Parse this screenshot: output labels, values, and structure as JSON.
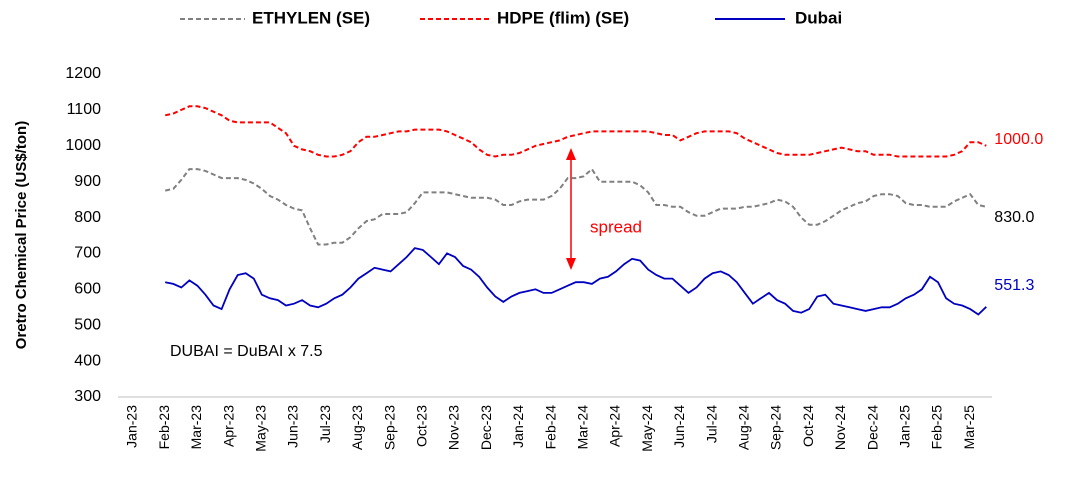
{
  "chart_data": {
    "type": "line",
    "ylabel": "Oretro Chemical Price (US$/ton)",
    "annotations": [
      "spread",
      "DUBAI = DuBAI x 7.5"
    ],
    "categories": [
      "Jan-23",
      null,
      null,
      null,
      "Feb-23",
      null,
      null,
      null,
      "Mar-23",
      null,
      null,
      null,
      "Apr-23",
      null,
      null,
      null,
      "May-23",
      null,
      null,
      null,
      "Jun-23",
      null,
      null,
      null,
      "Jul-23",
      null,
      null,
      null,
      "Aug-23",
      null,
      null,
      null,
      "Sep-23",
      null,
      null,
      null,
      "Oct-23",
      null,
      null,
      null,
      "Nov-23",
      null,
      null,
      null,
      "Dec-23",
      null,
      null,
      null,
      "Jan-24",
      null,
      null,
      null,
      "Feb-24",
      null,
      null,
      null,
      "Mar-24",
      null,
      null,
      null,
      "Apr-24",
      null,
      null,
      null,
      "May-24",
      null,
      null,
      null,
      "Jun-24",
      null,
      null,
      null,
      "Jul-24",
      null,
      null,
      null,
      "Aug-24",
      null,
      null,
      null,
      "Sep-24",
      null,
      null,
      null,
      "Oct-24",
      null,
      null,
      null,
      "Nov-24",
      null,
      null,
      null,
      "Dec-24",
      null,
      null,
      null,
      "Jan-25",
      null,
      null,
      null,
      "Feb-25",
      null,
      null,
      null,
      "Mar-25",
      null,
      null,
      null
    ],
    "ylim": [
      300,
      1200
    ],
    "yticks": [
      300,
      400,
      500,
      600,
      700,
      800,
      900,
      1000,
      1100,
      1200
    ],
    "grid": false,
    "series": [
      {
        "name": "ETHYLEN (SE)",
        "color": "#808080",
        "dash": true,
        "values": [
          null,
          null,
          null,
          null,
          875,
          880,
          905,
          935,
          935,
          930,
          920,
          910,
          910,
          910,
          905,
          895,
          880,
          860,
          850,
          835,
          825,
          820,
          770,
          725,
          725,
          730,
          730,
          745,
          770,
          790,
          795,
          810,
          810,
          810,
          815,
          840,
          870,
          870,
          870,
          870,
          865,
          860,
          855,
          855,
          855,
          850,
          835,
          835,
          845,
          850,
          850,
          850,
          860,
          880,
          910,
          910,
          915,
          935,
          900,
          900,
          900,
          900,
          900,
          890,
          870,
          835,
          835,
          830,
          830,
          815,
          805,
          805,
          815,
          825,
          825,
          825,
          830,
          830,
          835,
          840,
          850,
          845,
          830,
          800,
          780,
          780,
          790,
          805,
          820,
          830,
          840,
          845,
          860,
          865,
          865,
          860,
          840,
          835,
          835,
          830,
          830,
          830,
          845,
          855,
          865,
          835,
          830,
          null
        ],
        "value_labels": [
          null,
          null,
          null,
          null,
          null,
          null,
          null,
          null,
          null,
          null,
          null,
          null,
          null,
          null,
          null,
          null,
          null,
          null,
          null,
          null,
          null,
          null,
          null,
          null,
          null,
          null,
          null,
          null,
          null,
          null,
          null,
          null,
          null,
          null,
          null,
          null,
          null,
          null,
          null,
          null,
          null,
          null,
          null,
          null,
          null,
          null,
          null,
          null,
          null,
          null,
          null,
          null,
          null,
          null,
          null,
          null,
          null,
          null,
          null,
          null,
          null,
          null,
          null,
          null,
          null,
          null,
          null,
          null,
          null,
          null,
          null,
          null,
          null,
          null,
          null,
          null,
          null,
          null,
          null,
          null,
          null,
          null,
          null,
          null,
          null,
          null,
          null,
          null,
          null,
          null,
          null,
          null,
          null,
          null,
          null,
          null,
          null,
          null,
          null,
          null,
          null,
          null,
          null,
          null,
          null,
          null,
          "830.0",
          null
        ]
      },
      {
        "name": "HDPE (flim) (SE)",
        "color": "#ff0000",
        "dash": true,
        "values": [
          null,
          null,
          null,
          null,
          1085,
          1090,
          1100,
          1110,
          1110,
          1105,
          1095,
          1085,
          1070,
          1065,
          1065,
          1065,
          1065,
          1065,
          1050,
          1035,
          1000,
          990,
          985,
          975,
          970,
          970,
          975,
          985,
          1010,
          1025,
          1025,
          1030,
          1035,
          1040,
          1040,
          1045,
          1045,
          1045,
          1045,
          1040,
          1030,
          1020,
          1010,
          990,
          975,
          970,
          975,
          975,
          980,
          990,
          1000,
          1005,
          1010,
          1015,
          1025,
          1030,
          1035,
          1040,
          1040,
          1040,
          1040,
          1040,
          1040,
          1040,
          1040,
          1035,
          1030,
          1030,
          1015,
          1025,
          1035,
          1040,
          1040,
          1040,
          1040,
          1035,
          1020,
          1010,
          1000,
          990,
          980,
          975,
          975,
          975,
          975,
          980,
          985,
          990,
          995,
          990,
          985,
          985,
          975,
          975,
          975,
          970,
          970,
          970,
          970,
          970,
          970,
          970,
          975,
          985,
          1010,
          1010,
          1000,
          null
        ],
        "value_labels": [
          null,
          null,
          null,
          null,
          null,
          null,
          null,
          null,
          null,
          null,
          null,
          null,
          null,
          null,
          null,
          null,
          null,
          null,
          null,
          null,
          null,
          null,
          null,
          null,
          null,
          null,
          null,
          null,
          null,
          null,
          null,
          null,
          null,
          null,
          null,
          null,
          null,
          null,
          null,
          null,
          null,
          null,
          null,
          null,
          null,
          null,
          null,
          null,
          null,
          null,
          null,
          null,
          null,
          null,
          null,
          null,
          null,
          null,
          null,
          null,
          null,
          null,
          null,
          null,
          null,
          null,
          null,
          null,
          null,
          null,
          null,
          null,
          null,
          null,
          null,
          null,
          null,
          null,
          null,
          null,
          null,
          null,
          null,
          null,
          null,
          null,
          null,
          null,
          null,
          null,
          null,
          null,
          null,
          null,
          null,
          null,
          null,
          null,
          null,
          null,
          null,
          null,
          null,
          null,
          null,
          null,
          "1000.0",
          null
        ]
      },
      {
        "name": "Dubai",
        "color": "#0000c0",
        "dash": false,
        "values": [
          null,
          null,
          null,
          null,
          620,
          615,
          605,
          625,
          610,
          585,
          555,
          545,
          600,
          640,
          645,
          630,
          585,
          575,
          570,
          555,
          560,
          570,
          555,
          550,
          560,
          575,
          585,
          605,
          630,
          645,
          660,
          655,
          650,
          670,
          690,
          715,
          710,
          690,
          670,
          700,
          690,
          665,
          655,
          635,
          605,
          580,
          565,
          580,
          590,
          595,
          600,
          590,
          590,
          600,
          610,
          620,
          620,
          615,
          630,
          635,
          650,
          670,
          685,
          680,
          655,
          640,
          630,
          630,
          610,
          590,
          605,
          630,
          645,
          650,
          640,
          620,
          590,
          560,
          575,
          590,
          570,
          560,
          540,
          535,
          545,
          580,
          585,
          560,
          555,
          550,
          545,
          540,
          545,
          550,
          550,
          560,
          575,
          585,
          600,
          635,
          620,
          575,
          560,
          555,
          545,
          530,
          551.3,
          null
        ],
        "value_labels": [
          null,
          null,
          null,
          null,
          null,
          null,
          null,
          null,
          null,
          null,
          null,
          null,
          null,
          null,
          null,
          null,
          null,
          null,
          null,
          null,
          null,
          null,
          null,
          null,
          null,
          null,
          null,
          null,
          null,
          null,
          null,
          null,
          null,
          null,
          null,
          null,
          null,
          null,
          null,
          null,
          null,
          null,
          null,
          null,
          null,
          null,
          null,
          null,
          null,
          null,
          null,
          null,
          null,
          null,
          null,
          null,
          null,
          null,
          null,
          null,
          null,
          null,
          null,
          null,
          null,
          null,
          null,
          null,
          null,
          null,
          null,
          null,
          null,
          null,
          null,
          null,
          null,
          null,
          null,
          null,
          null,
          null,
          null,
          null,
          null,
          null,
          null,
          null,
          null,
          null,
          null,
          null,
          null,
          null,
          null,
          null,
          null,
          null,
          null,
          null,
          null,
          null,
          null,
          null,
          null,
          null,
          "551.3",
          null
        ]
      }
    ]
  }
}
